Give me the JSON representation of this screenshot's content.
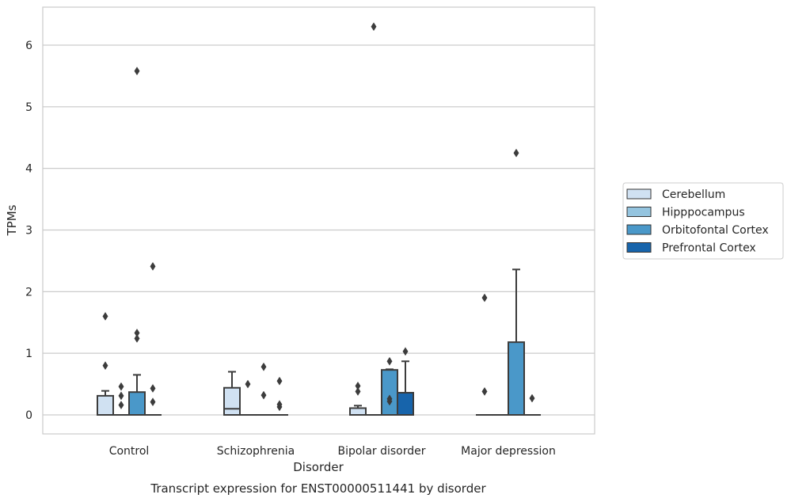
{
  "chart_data": {
    "type": "box",
    "title": "",
    "caption": "Transcript expression for ENST00000511441 by disorder",
    "xlabel": "Disorder",
    "ylabel": "TPMs",
    "ylim": [
      -0.3,
      6.6
    ],
    "yticks": [
      0,
      1,
      2,
      3,
      4,
      5,
      6
    ],
    "categories": [
      "Control",
      "Schizophrenia",
      "Bipolar disorder",
      "Major depression"
    ],
    "grid": "horizontal",
    "legend_position": "right",
    "colors": {
      "Cerebellum": "#d0e1f2",
      "Hipppocampus": "#94c4df",
      "Orbitofontal Cortex": "#4a98c9",
      "Prefrontal Cortex": "#1764ab"
    },
    "series": [
      {
        "name": "Cerebellum",
        "boxes": [
          {
            "category": "Control",
            "whislo": 0,
            "q1": 0,
            "med": 0,
            "q3": 0.31,
            "whishi": 0.39,
            "fliers": [
              0.8,
              1.6
            ]
          },
          {
            "category": "Schizophrenia",
            "whislo": 0,
            "q1": 0,
            "med": 0.1,
            "q3": 0.44,
            "whishi": 0.7,
            "fliers": []
          },
          {
            "category": "Bipolar disorder",
            "whislo": 0,
            "q1": 0,
            "med": 0,
            "q3": 0.11,
            "whishi": 0.15,
            "fliers": [
              0.38,
              0.47
            ]
          },
          {
            "category": "Major depression",
            "whislo": 0,
            "q1": 0,
            "med": 0,
            "q3": 0,
            "whishi": 0,
            "fliers": [
              0.38,
              1.9
            ]
          }
        ]
      },
      {
        "name": "Hipppocampus",
        "boxes": [
          {
            "category": "Control",
            "whislo": 0,
            "q1": 0,
            "med": 0,
            "q3": 0,
            "whishi": 0,
            "fliers": [
              0.16,
              0.31,
              0.46
            ]
          },
          {
            "category": "Schizophrenia",
            "whislo": 0,
            "q1": 0,
            "med": 0,
            "q3": 0,
            "whishi": 0,
            "fliers": [
              0.5
            ]
          },
          {
            "category": "Bipolar disorder",
            "whislo": 0,
            "q1": 0,
            "med": 0,
            "q3": 0,
            "whishi": 0,
            "fliers": [
              6.3
            ]
          },
          {
            "category": "Major depression",
            "whislo": 0,
            "q1": 0,
            "med": 0,
            "q3": 0,
            "whishi": 0,
            "fliers": []
          }
        ]
      },
      {
        "name": "Orbitofontal Cortex",
        "boxes": [
          {
            "category": "Control",
            "whislo": 0,
            "q1": 0,
            "med": 0,
            "q3": 0.37,
            "whishi": 0.65,
            "fliers": [
              1.24,
              1.33,
              5.58
            ]
          },
          {
            "category": "Schizophrenia",
            "whislo": 0,
            "q1": 0,
            "med": 0,
            "q3": 0,
            "whishi": 0,
            "fliers": [
              0.32,
              0.78
            ]
          },
          {
            "category": "Bipolar disorder",
            "whislo": 0,
            "q1": 0,
            "med": 0,
            "q3": 0.73,
            "whishi": 0.74,
            "fliers": [
              0.22,
              0.26,
              0.87
            ]
          },
          {
            "category": "Major depression",
            "whislo": 0,
            "q1": 0,
            "med": 0,
            "q3": 1.18,
            "whishi": 2.36,
            "fliers": [
              4.25
            ]
          }
        ]
      },
      {
        "name": "Prefrontal Cortex",
        "boxes": [
          {
            "category": "Control",
            "whislo": 0,
            "q1": 0,
            "med": 0,
            "q3": 0,
            "whishi": 0,
            "fliers": [
              0.21,
              0.43,
              2.41
            ]
          },
          {
            "category": "Schizophrenia",
            "whislo": 0,
            "q1": 0,
            "med": 0,
            "q3": 0,
            "whishi": 0,
            "fliers": [
              0.13,
              0.17,
              0.55
            ]
          },
          {
            "category": "Bipolar disorder",
            "whislo": 0,
            "q1": 0,
            "med": 0,
            "q3": 0.36,
            "whishi": 0.87,
            "fliers": [
              1.03
            ]
          },
          {
            "category": "Major depression",
            "whislo": 0,
            "q1": 0,
            "med": 0,
            "q3": 0,
            "whishi": 0,
            "fliers": [
              0.27
            ]
          }
        ]
      }
    ]
  }
}
